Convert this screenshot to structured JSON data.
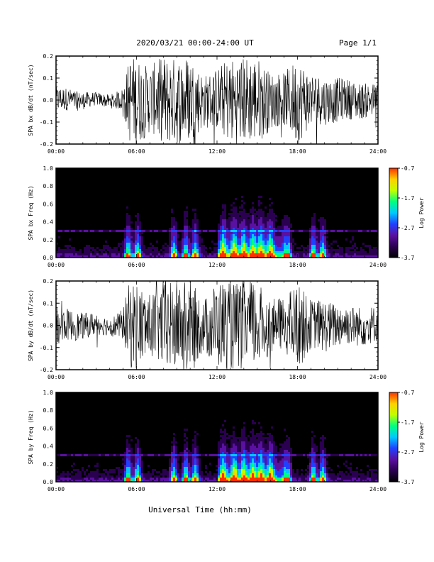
{
  "header": {
    "title": "2020/03/21  00:00-24:00 UT",
    "page": "Page 1/1"
  },
  "xlabel": "Universal Time (hh:mm)",
  "x_ticks": [
    "00:00",
    "06:00",
    "12:00",
    "18:00",
    "24:00"
  ],
  "colors": {
    "trace": "#000000",
    "spectrogram_bg": "#000000",
    "colormap": [
      "#000000",
      "#2a0050",
      "#5a10a0",
      "#2040ff",
      "#00c8ff",
      "#00ff80",
      "#c0ff00",
      "#ffd000",
      "#ff3000"
    ]
  },
  "chart_data": [
    {
      "type": "line",
      "ylabel": "SPA bx dB/dt (nT/sec)",
      "xlim": [
        "00:00",
        "24:00"
      ],
      "ylim": [
        -0.2,
        0.2
      ],
      "y_ticks": [
        "0.2",
        "0.1",
        "0.0",
        "-0.1",
        "-0.2"
      ],
      "envelope": {
        "description_hours": [
          0,
          1,
          2,
          3,
          4,
          5,
          5.5,
          6,
          7,
          8,
          9,
          10,
          11,
          12,
          13,
          14,
          15,
          16,
          17,
          18,
          19,
          20,
          21,
          22,
          23,
          24
        ],
        "amplitude": [
          0.06,
          0.05,
          0.04,
          0.03,
          0.03,
          0.05,
          0.2,
          0.2,
          0.15,
          0.2,
          0.2,
          0.2,
          0.12,
          0.14,
          0.2,
          0.2,
          0.2,
          0.13,
          0.12,
          0.2,
          0.12,
          0.11,
          0.1,
          0.09,
          0.08,
          0.07
        ]
      }
    },
    {
      "type": "heatmap",
      "ylabel": "SPA bx Freq (Hz)",
      "xlim": [
        "00:00",
        "24:00"
      ],
      "ylim": [
        0.0,
        1.0
      ],
      "y_ticks": [
        "1.0",
        "0.8",
        "0.6",
        "0.4",
        "0.2",
        "0.0"
      ],
      "colorbar": {
        "label": "Log Power",
        "ticks": [
          "-0.7",
          "-1.7",
          "-2.7",
          "-3.7"
        ],
        "range": [
          -3.7,
          -0.7
        ]
      }
    },
    {
      "type": "line",
      "ylabel": "SPA by dB/dt (nT/sec)",
      "xlim": [
        "00:00",
        "24:00"
      ],
      "ylim": [
        -0.2,
        0.2
      ],
      "y_ticks": [
        "0.2",
        "0.1",
        "0.0",
        "-0.1",
        "-0.2"
      ],
      "envelope": {
        "description_hours": [
          0,
          1,
          2,
          3,
          4,
          5,
          5.5,
          6,
          7,
          8,
          9,
          10,
          11,
          12,
          13,
          14,
          15,
          16,
          17,
          18,
          19,
          20,
          21,
          22,
          23,
          24
        ],
        "amplitude": [
          0.08,
          0.07,
          0.06,
          0.05,
          0.04,
          0.07,
          0.2,
          0.2,
          0.14,
          0.2,
          0.2,
          0.2,
          0.12,
          0.2,
          0.2,
          0.2,
          0.2,
          0.12,
          0.12,
          0.2,
          0.11,
          0.12,
          0.1,
          0.09,
          0.09,
          0.08
        ]
      }
    },
    {
      "type": "heatmap",
      "ylabel": "SPA by Freq (Hz)",
      "xlim": [
        "00:00",
        "24:00"
      ],
      "ylim": [
        0.0,
        1.0
      ],
      "y_ticks": [
        "1.0",
        "0.8",
        "0.6",
        "0.4",
        "0.2",
        "0.0"
      ],
      "colorbar": {
        "label": "Log Power",
        "ticks": [
          "-0.7",
          "-1.7",
          "-2.7",
          "-3.7"
        ],
        "range": [
          -3.7,
          -0.7
        ]
      }
    }
  ]
}
